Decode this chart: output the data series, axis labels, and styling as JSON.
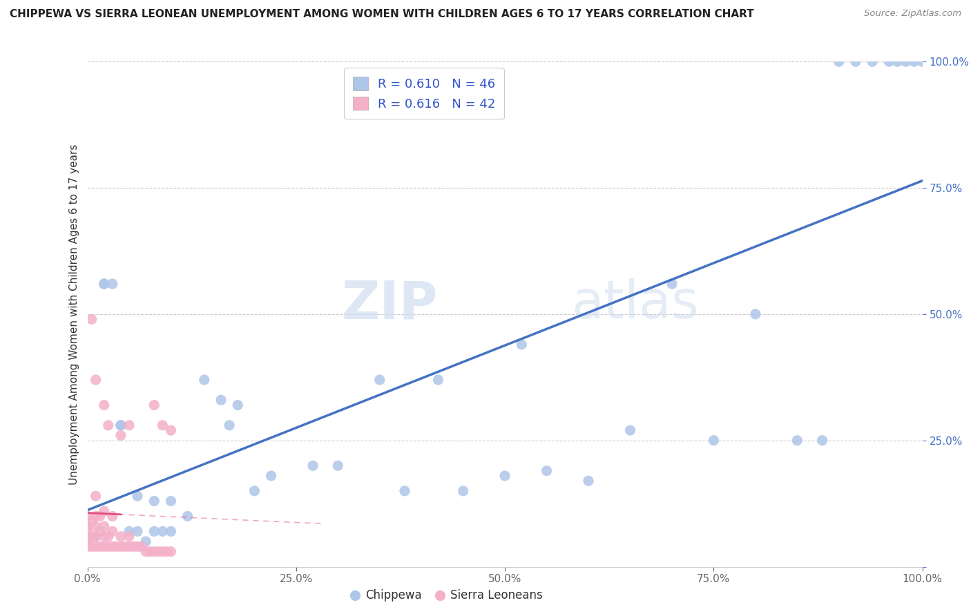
{
  "title": "CHIPPEWA VS SIERRA LEONEAN UNEMPLOYMENT AMONG WOMEN WITH CHILDREN AGES 6 TO 17 YEARS CORRELATION CHART",
  "source": "Source: ZipAtlas.com",
  "ylabel": "Unemployment Among Women with Children Ages 6 to 17 years",
  "xlim": [
    0.0,
    1.0
  ],
  "ylim": [
    0.0,
    1.0
  ],
  "xtick_vals": [
    0.0,
    0.25,
    0.5,
    0.75,
    1.0
  ],
  "xtick_labels": [
    "0.0%",
    "25.0%",
    "50.0%",
    "75.0%",
    "100.0%"
  ],
  "ytick_vals": [
    0.0,
    0.25,
    0.5,
    0.75,
    1.0
  ],
  "ytick_labels": [
    "",
    "25.0%",
    "50.0%",
    "75.0%",
    "100.0%"
  ],
  "chippewa_R": "0.610",
  "chippewa_N": "46",
  "sierra_R": "0.616",
  "sierra_N": "42",
  "chippewa_color": "#aec6e8",
  "sierra_color": "#f4b0c8",
  "chippewa_line_color": "#4472c4",
  "sierra_line_color": "#e05080",
  "legend_label_chippewa": "Chippewa",
  "legend_label_sierra": "Sierra Leoneans",
  "watermark_line1": "ZIP",
  "watermark_line2": "atlas",
  "chippewa_x": [
    0.01,
    0.02,
    0.02,
    0.03,
    0.04,
    0.04,
    0.05,
    0.06,
    0.06,
    0.07,
    0.08,
    0.08,
    0.09,
    0.1,
    0.1,
    0.12,
    0.14,
    0.16,
    0.17,
    0.18,
    0.2,
    0.22,
    0.27,
    0.3,
    0.35,
    0.38,
    0.42,
    0.45,
    0.5,
    0.52,
    0.55,
    0.6,
    0.65,
    0.7,
    0.75,
    0.8,
    0.85,
    0.88,
    0.9,
    0.92,
    0.94,
    0.96,
    0.97,
    0.98,
    0.99,
    1.0
  ],
  "chippewa_y": [
    0.06,
    0.56,
    0.56,
    0.56,
    0.28,
    0.28,
    0.07,
    0.07,
    0.14,
    0.05,
    0.07,
    0.13,
    0.07,
    0.07,
    0.13,
    0.1,
    0.37,
    0.33,
    0.28,
    0.32,
    0.15,
    0.18,
    0.2,
    0.2,
    0.37,
    0.15,
    0.37,
    0.15,
    0.18,
    0.44,
    0.19,
    0.17,
    0.27,
    0.56,
    0.25,
    0.5,
    0.25,
    0.25,
    1.0,
    1.0,
    1.0,
    1.0,
    1.0,
    1.0,
    1.0,
    1.0
  ],
  "sierra_x": [
    0.0,
    0.0,
    0.0,
    0.0,
    0.0,
    0.0,
    0.005,
    0.005,
    0.005,
    0.01,
    0.01,
    0.01,
    0.01,
    0.01,
    0.015,
    0.015,
    0.015,
    0.02,
    0.02,
    0.02,
    0.02,
    0.025,
    0.025,
    0.03,
    0.03,
    0.03,
    0.035,
    0.04,
    0.04,
    0.045,
    0.05,
    0.05,
    0.055,
    0.06,
    0.065,
    0.07,
    0.075,
    0.08,
    0.085,
    0.09,
    0.095,
    0.1
  ],
  "sierra_y": [
    0.04,
    0.05,
    0.06,
    0.07,
    0.08,
    0.1,
    0.04,
    0.06,
    0.09,
    0.04,
    0.06,
    0.08,
    0.1,
    0.14,
    0.04,
    0.07,
    0.1,
    0.04,
    0.06,
    0.08,
    0.11,
    0.04,
    0.06,
    0.04,
    0.07,
    0.1,
    0.04,
    0.04,
    0.06,
    0.04,
    0.04,
    0.06,
    0.04,
    0.04,
    0.04,
    0.03,
    0.03,
    0.03,
    0.03,
    0.03,
    0.03,
    0.03
  ],
  "extra_sierra_x": [
    0.005,
    0.01,
    0.02,
    0.025,
    0.04,
    0.05,
    0.08,
    0.09,
    0.1
  ],
  "extra_sierra_y": [
    0.49,
    0.37,
    0.32,
    0.28,
    0.26,
    0.28,
    0.32,
    0.28,
    0.27
  ]
}
